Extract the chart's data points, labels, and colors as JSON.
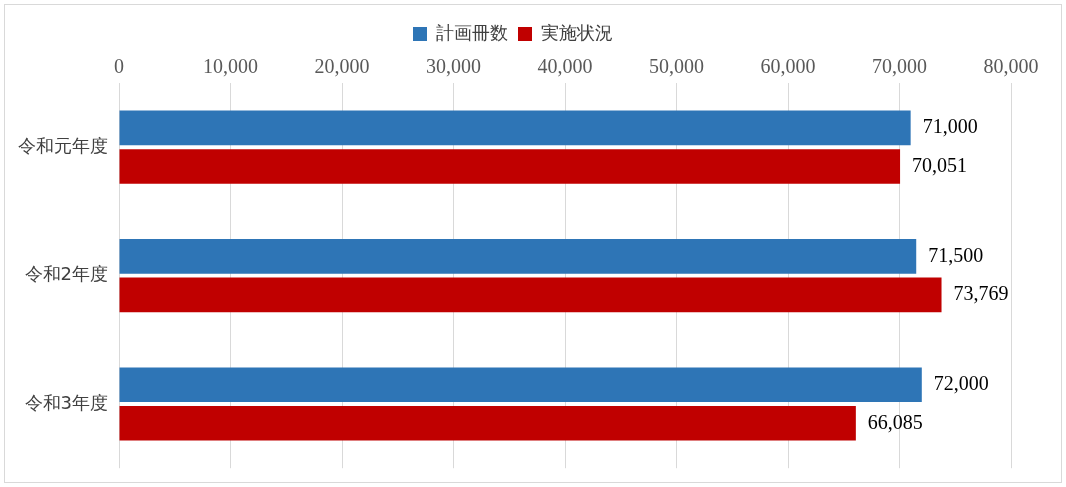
{
  "chart_data": {
    "type": "bar",
    "orientation": "horizontal",
    "categories": [
      "令和元年度",
      "令和2年度",
      "令和3年度"
    ],
    "series": [
      {
        "name": "計画冊数",
        "color": "#2e75b6",
        "values": [
          71000,
          71500,
          72000
        ],
        "value_labels": [
          "71,000",
          "71,500",
          "72,000"
        ]
      },
      {
        "name": "実施状況",
        "color": "#c00000",
        "values": [
          70051,
          73769,
          66085
        ],
        "value_labels": [
          "70,051",
          "73,769",
          "66,085"
        ]
      }
    ],
    "xlim": [
      0,
      80000
    ],
    "xticks": [
      0,
      {
        "value": 10000,
        "label": "10,000"
      },
      {
        "value": 20000,
        "label": "20,000"
      },
      {
        "value": 30000,
        "label": "30,000"
      },
      {
        "value": 40000,
        "label": "40,000"
      },
      {
        "value": 50000,
        "label": "50,000"
      },
      {
        "value": 60000,
        "label": "60,000"
      },
      {
        "value": 70000,
        "label": "70,000"
      },
      {
        "value": 80000,
        "label": "80,000"
      }
    ],
    "grid": "x",
    "legend": "top"
  }
}
